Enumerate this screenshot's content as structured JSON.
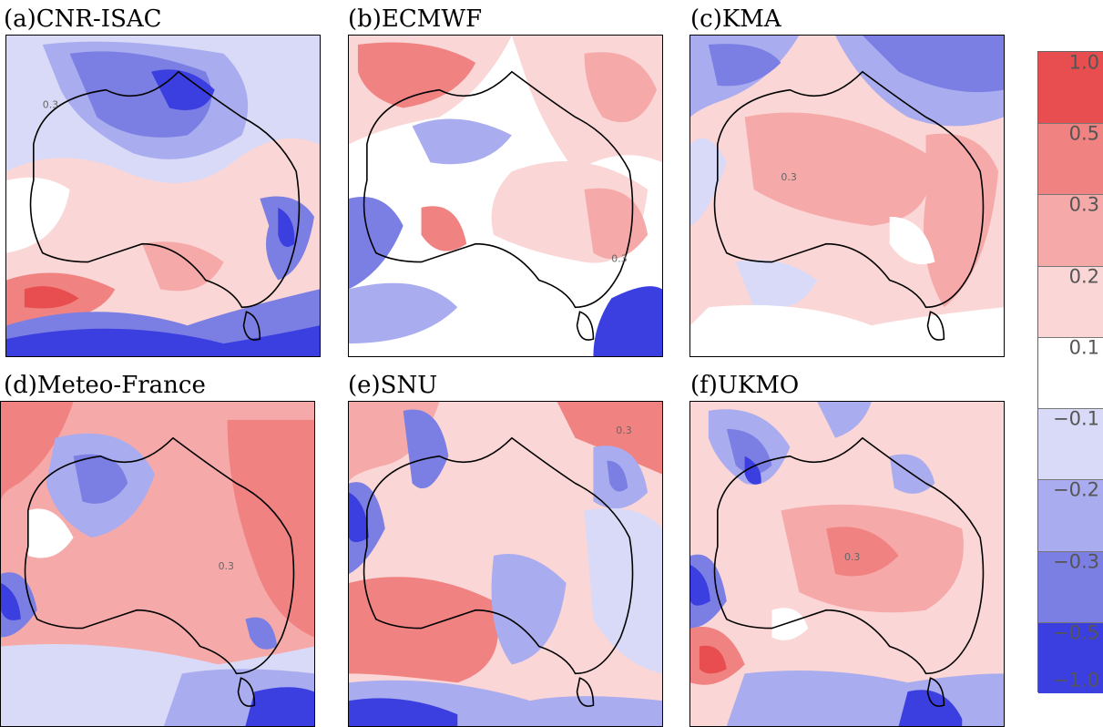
{
  "panels": [
    {
      "id": "a",
      "title": "(a)CNR-ISAC",
      "scheme": "blue-north"
    },
    {
      "id": "b",
      "title": "(b)ECMWF",
      "scheme": "mixed-red"
    },
    {
      "id": "c",
      "title": "(c)KMA",
      "scheme": "red-center"
    },
    {
      "id": "d",
      "title": "(d)Meteo-France",
      "scheme": "red-east"
    },
    {
      "id": "e",
      "title": "(e)SNU",
      "scheme": "red-southwest"
    },
    {
      "id": "f",
      "title": "(f)UKMO",
      "scheme": "speckled"
    }
  ],
  "colorbar": {
    "levels": [
      {
        "label": "1.0",
        "color": "#e84d4f"
      },
      {
        "label": "0.5",
        "color": "#f08282"
      },
      {
        "label": "0.3",
        "color": "#f5aaa9"
      },
      {
        "label": "0.2",
        "color": "#fbd6d6"
      },
      {
        "label": "0.1",
        "color": "#ffffff"
      },
      {
        "label": "−0.1",
        "color": "#d9daf7"
      },
      {
        "label": "−0.2",
        "color": "#a9acee"
      },
      {
        "label": "−0.3",
        "color": "#7b7fe3"
      },
      {
        "label": "−0.5",
        "color": "#3c3fe0"
      },
      {
        "label": "−1.0",
        "color": ""
      }
    ]
  },
  "contour_labels": [
    {
      "panel": "a",
      "text": "0.3"
    },
    {
      "panel": "b",
      "text": "0.3"
    },
    {
      "panel": "c",
      "text": "0.3"
    },
    {
      "panel": "d",
      "text": "0.3"
    },
    {
      "panel": "e",
      "text": "0.3"
    },
    {
      "panel": "f",
      "text": "0.3"
    }
  ]
}
